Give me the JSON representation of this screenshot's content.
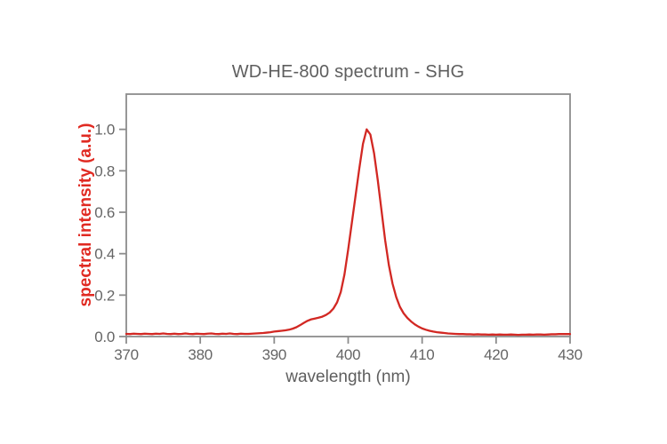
{
  "chart_data": {
    "type": "line",
    "title": "WD-HE-800 spectrum - SHG",
    "xlabel": "wavelength (nm)",
    "ylabel": "spectral intensity (a.u.)",
    "xlim": [
      370,
      430
    ],
    "ylim": [
      0,
      1.17
    ],
    "xticks": [
      370,
      380,
      390,
      400,
      410,
      420,
      430
    ],
    "yticks": [
      0.0,
      0.2,
      0.4,
      0.6,
      0.8,
      1.0
    ],
    "ytick_labels": [
      "0.0",
      "0.2",
      "0.4",
      "0.6",
      "0.8",
      "1.0"
    ],
    "grid": false,
    "legend": "none",
    "peak": {
      "wavelength_nm": 402.5,
      "intensity": 1.0
    },
    "colors": {
      "curve": "#d22823",
      "ylabel": "#e02a22",
      "title": "#5e5e5e",
      "tick_text": "#656565",
      "axis": "#8c8c8c"
    },
    "series": [
      {
        "points": [
          [
            370,
            0.013
          ],
          [
            370.5,
            0.012
          ],
          [
            371,
            0.014
          ],
          [
            371.5,
            0.013
          ],
          [
            372,
            0.012
          ],
          [
            372.5,
            0.014
          ],
          [
            373,
            0.013
          ],
          [
            373.5,
            0.012
          ],
          [
            374,
            0.014
          ],
          [
            374.5,
            0.013
          ],
          [
            375,
            0.015
          ],
          [
            375.5,
            0.013
          ],
          [
            376,
            0.012
          ],
          [
            376.5,
            0.014
          ],
          [
            377,
            0.012
          ],
          [
            377.5,
            0.013
          ],
          [
            378,
            0.015
          ],
          [
            378.5,
            0.013
          ],
          [
            379,
            0.012
          ],
          [
            379.5,
            0.014
          ],
          [
            380,
            0.013
          ],
          [
            380.5,
            0.012
          ],
          [
            381,
            0.014
          ],
          [
            381.5,
            0.015
          ],
          [
            382,
            0.013
          ],
          [
            382.5,
            0.012
          ],
          [
            383,
            0.014
          ],
          [
            383.5,
            0.013
          ],
          [
            384,
            0.015
          ],
          [
            384.5,
            0.013
          ],
          [
            385,
            0.012
          ],
          [
            385.5,
            0.014
          ],
          [
            386,
            0.013
          ],
          [
            386.5,
            0.013
          ],
          [
            387,
            0.014
          ],
          [
            387.5,
            0.015
          ],
          [
            388,
            0.016
          ],
          [
            388.5,
            0.017
          ],
          [
            389,
            0.019
          ],
          [
            389.5,
            0.021
          ],
          [
            390,
            0.024
          ],
          [
            390.5,
            0.026
          ],
          [
            391,
            0.028
          ],
          [
            391.5,
            0.03
          ],
          [
            392,
            0.033
          ],
          [
            392.5,
            0.038
          ],
          [
            393,
            0.045
          ],
          [
            393.5,
            0.055
          ],
          [
            394,
            0.066
          ],
          [
            394.5,
            0.076
          ],
          [
            395,
            0.083
          ],
          [
            395.5,
            0.087
          ],
          [
            396,
            0.091
          ],
          [
            396.5,
            0.096
          ],
          [
            397,
            0.104
          ],
          [
            397.5,
            0.116
          ],
          [
            398,
            0.135
          ],
          [
            398.5,
            0.165
          ],
          [
            399,
            0.215
          ],
          [
            399.5,
            0.3
          ],
          [
            400,
            0.42
          ],
          [
            400.5,
            0.55
          ],
          [
            401,
            0.68
          ],
          [
            401.5,
            0.81
          ],
          [
            402,
            0.93
          ],
          [
            402.5,
            1.0
          ],
          [
            403,
            0.975
          ],
          [
            403.5,
            0.885
          ],
          [
            404,
            0.755
          ],
          [
            404.5,
            0.61
          ],
          [
            405,
            0.465
          ],
          [
            405.5,
            0.345
          ],
          [
            406,
            0.255
          ],
          [
            406.5,
            0.19
          ],
          [
            407,
            0.143
          ],
          [
            407.5,
            0.112
          ],
          [
            408,
            0.09
          ],
          [
            408.5,
            0.073
          ],
          [
            409,
            0.059
          ],
          [
            409.5,
            0.048
          ],
          [
            410,
            0.039
          ],
          [
            410.5,
            0.033
          ],
          [
            411,
            0.028
          ],
          [
            411.5,
            0.024
          ],
          [
            412,
            0.021
          ],
          [
            412.5,
            0.019
          ],
          [
            413,
            0.017
          ],
          [
            413.5,
            0.015
          ],
          [
            414,
            0.014
          ],
          [
            414.5,
            0.013
          ],
          [
            415,
            0.012
          ],
          [
            415.5,
            0.012
          ],
          [
            416,
            0.011
          ],
          [
            416.5,
            0.011
          ],
          [
            417,
            0.01
          ],
          [
            417.5,
            0.011
          ],
          [
            418,
            0.01
          ],
          [
            418.5,
            0.01
          ],
          [
            419,
            0.009
          ],
          [
            419.5,
            0.01
          ],
          [
            420,
            0.009
          ],
          [
            420.5,
            0.01
          ],
          [
            421,
            0.009
          ],
          [
            421.5,
            0.009
          ],
          [
            422,
            0.01
          ],
          [
            422.5,
            0.009
          ],
          [
            423,
            0.008
          ],
          [
            423.5,
            0.009
          ],
          [
            424,
            0.009
          ],
          [
            424.5,
            0.01
          ],
          [
            425,
            0.009
          ],
          [
            425.5,
            0.01
          ],
          [
            426,
            0.01
          ],
          [
            426.5,
            0.009
          ],
          [
            427,
            0.01
          ],
          [
            427.5,
            0.011
          ],
          [
            428,
            0.011
          ],
          [
            428.5,
            0.012
          ],
          [
            429,
            0.012
          ],
          [
            429.5,
            0.012
          ],
          [
            430,
            0.012
          ]
        ]
      }
    ]
  }
}
